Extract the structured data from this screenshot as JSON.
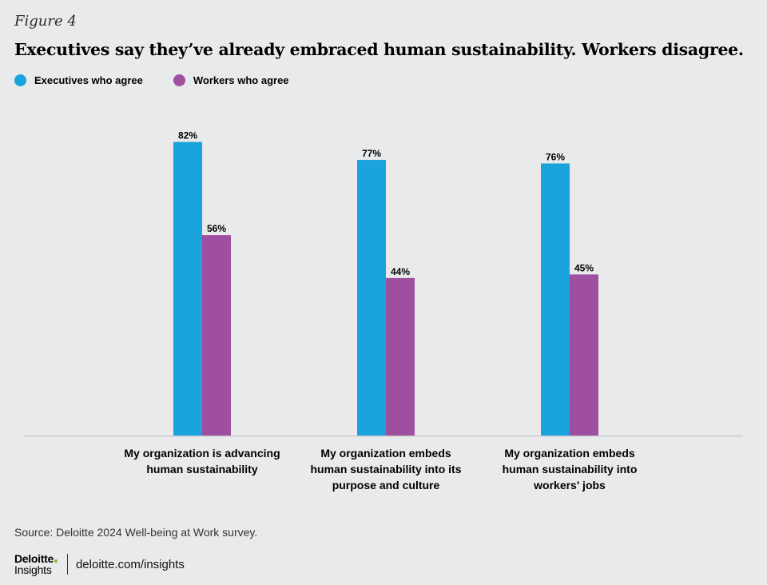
{
  "figure_label": "Figure 4",
  "colors": {
    "executives": "#1ba3dd",
    "workers": "#9e4f9f",
    "axis": "#c9cacb",
    "background": "#e9eaeb"
  },
  "source": "Source: Deloitte 2024 Well-being at Work survey.",
  "footer": {
    "logo": "Deloitte",
    "logo_sub": "Insights",
    "url": "deloitte.com/insights"
  },
  "chart_data": {
    "type": "bar",
    "title": "Executives say they’ve already embraced human sustainability. Workers disagree.",
    "categories": [
      [
        "My organization is advancing",
        "human sustainability"
      ],
      [
        "My organization embeds",
        "human sustainability into its",
        "purpose and culture"
      ],
      [
        "My organization embeds",
        "human sustainability into",
        "workers' jobs"
      ]
    ],
    "series": [
      {
        "name": "Executives who agree",
        "values": [
          82,
          77,
          76
        ],
        "labels": [
          "82%",
          "77%",
          "76%"
        ]
      },
      {
        "name": "Workers who agree",
        "values": [
          56,
          44,
          45
        ],
        "labels": [
          "56%",
          "44%",
          "45%"
        ]
      }
    ],
    "ylim": [
      0,
      100
    ],
    "grid": false,
    "legend_position": "top-left"
  }
}
